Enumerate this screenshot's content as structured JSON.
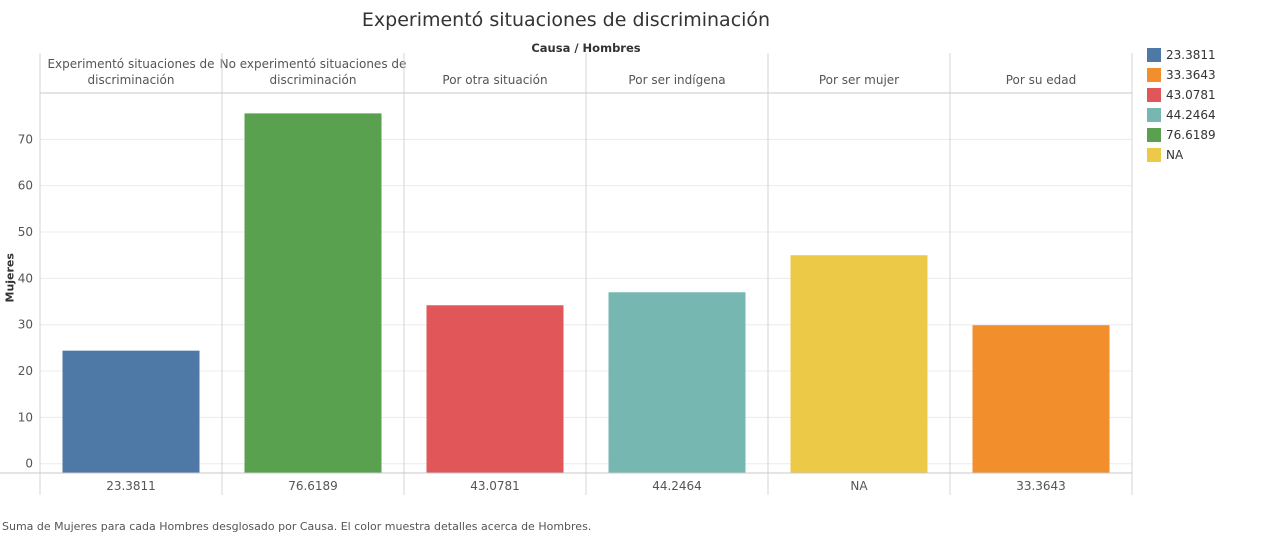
{
  "title": "Experimentó situaciones de discriminación",
  "footer": "Suma de Mujeres para cada Hombres desglosado por Causa.  El color muestra detalles acerca de Hombres.",
  "legend": [
    {
      "label": "23.3811",
      "color": "#4e79a7"
    },
    {
      "label": "33.3643",
      "color": "#f28e2b"
    },
    {
      "label": "43.0781",
      "color": "#e15759"
    },
    {
      "label": "44.2464",
      "color": "#76b7b2"
    },
    {
      "label": "76.6189",
      "color": "#59a14f"
    },
    {
      "label": "NA",
      "color": "#edc948"
    }
  ],
  "chart_data": {
    "type": "bar",
    "title": "Experimentó situaciones de discriminación",
    "header": "Causa / Hombres",
    "ylabel": "Mujeres",
    "ylim": [
      -2,
      80
    ],
    "yticks": [
      0,
      10,
      20,
      30,
      40,
      50,
      60,
      70
    ],
    "grid": true,
    "legend_position": "right",
    "categories": [
      {
        "top": [
          "Experimentó situaciones de",
          "discriminación"
        ],
        "bottom": "23.3811",
        "value": 24.4,
        "color": "#4e79a7"
      },
      {
        "top": [
          "No experimentó situaciones de",
          "discriminación"
        ],
        "bottom": "76.6189",
        "value": 75.6,
        "color": "#59a14f"
      },
      {
        "top": [
          "Por otra situación"
        ],
        "bottom": "43.0781",
        "value": 34.2,
        "color": "#e15759"
      },
      {
        "top": [
          "Por ser indígena"
        ],
        "bottom": "44.2464",
        "value": 37.0,
        "color": "#76b7b2"
      },
      {
        "top": [
          "Por ser mujer"
        ],
        "bottom": "NA",
        "value": 45.0,
        "color": "#edc948"
      },
      {
        "top": [
          "Por su edad"
        ],
        "bottom": "33.3643",
        "value": 29.9,
        "color": "#f28e2b"
      }
    ]
  }
}
